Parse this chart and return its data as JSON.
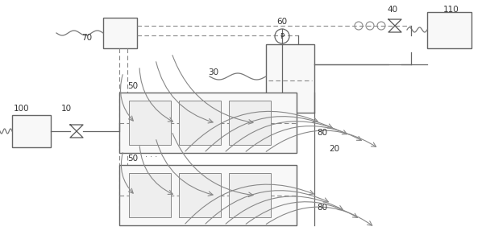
{
  "bg_color": "#ffffff",
  "lc": "#777777",
  "fc_box": "#f8f8f8",
  "fc_inner": "#eeeeee",
  "label_color": "#333333",
  "fs": 7.5
}
